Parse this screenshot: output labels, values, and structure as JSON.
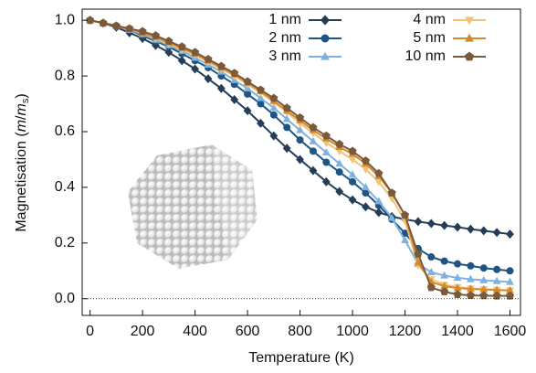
{
  "chart_data": {
    "type": "line",
    "x_label": "Temperature (K)",
    "y_label": [
      "Magnetisation (",
      "m",
      "/",
      "m",
      "s",
      ")"
    ],
    "x": [
      0,
      50,
      100,
      150,
      200,
      250,
      300,
      350,
      400,
      450,
      500,
      550,
      600,
      650,
      700,
      750,
      800,
      850,
      900,
      950,
      1000,
      1050,
      1100,
      1150,
      1200,
      1250,
      1300,
      1350,
      1400,
      1450,
      1500,
      1550,
      1600
    ],
    "series": [
      {
        "name": "1 nm",
        "color": "#253d56",
        "marker": "diamond",
        "values": [
          1.0,
          0.99,
          0.975,
          0.955,
          0.935,
          0.91,
          0.885,
          0.855,
          0.825,
          0.79,
          0.755,
          0.715,
          0.675,
          0.63,
          0.585,
          0.54,
          0.5,
          0.46,
          0.42,
          0.385,
          0.355,
          0.33,
          0.31,
          0.295,
          0.285,
          0.277,
          0.27,
          0.263,
          0.257,
          0.25,
          0.244,
          0.238,
          0.232
        ]
      },
      {
        "name": "2 nm",
        "color": "#1f5582",
        "marker": "circle",
        "values": [
          1.0,
          0.99,
          0.98,
          0.965,
          0.945,
          0.925,
          0.905,
          0.88,
          0.855,
          0.83,
          0.8,
          0.77,
          0.735,
          0.7,
          0.66,
          0.615,
          0.57,
          0.53,
          0.49,
          0.455,
          0.42,
          0.38,
          0.335,
          0.285,
          0.235,
          0.18,
          0.15,
          0.135,
          0.125,
          0.118,
          0.11,
          0.105,
          0.1
        ]
      },
      {
        "name": "3 nm",
        "color": "#7fb0de",
        "marker": "triangle-up",
        "values": [
          1.0,
          0.99,
          0.98,
          0.965,
          0.95,
          0.93,
          0.91,
          0.89,
          0.865,
          0.84,
          0.815,
          0.785,
          0.755,
          0.72,
          0.685,
          0.645,
          0.605,
          0.565,
          0.525,
          0.485,
          0.445,
          0.4,
          0.35,
          0.29,
          0.21,
          0.125,
          0.095,
          0.083,
          0.075,
          0.07,
          0.066,
          0.063,
          0.06
        ]
      },
      {
        "name": "4 nm",
        "color": "#f0c27a",
        "marker": "triangle-down",
        "values": [
          1.0,
          0.99,
          0.98,
          0.97,
          0.955,
          0.935,
          0.915,
          0.895,
          0.875,
          0.85,
          0.825,
          0.8,
          0.77,
          0.74,
          0.705,
          0.67,
          0.63,
          0.595,
          0.56,
          0.53,
          0.5,
          0.465,
          0.42,
          0.36,
          0.28,
          0.12,
          0.07,
          0.05,
          0.042,
          0.037,
          0.034,
          0.032,
          0.03
        ]
      },
      {
        "name": "5 nm",
        "color": "#d4892a",
        "marker": "triangle-up",
        "values": [
          1.0,
          0.99,
          0.98,
          0.97,
          0.955,
          0.94,
          0.92,
          0.9,
          0.88,
          0.855,
          0.83,
          0.805,
          0.775,
          0.745,
          0.71,
          0.675,
          0.64,
          0.605,
          0.575,
          0.545,
          0.52,
          0.485,
          0.44,
          0.38,
          0.3,
          0.13,
          0.06,
          0.045,
          0.038,
          0.035,
          0.033,
          0.031,
          0.03
        ]
      },
      {
        "name": "10 nm",
        "color": "#7a5a3a",
        "marker": "pentagon",
        "values": [
          1.0,
          0.99,
          0.98,
          0.97,
          0.96,
          0.945,
          0.925,
          0.905,
          0.885,
          0.86,
          0.835,
          0.81,
          0.78,
          0.75,
          0.72,
          0.685,
          0.65,
          0.615,
          0.585,
          0.555,
          0.53,
          0.495,
          0.45,
          0.38,
          0.3,
          0.16,
          0.04,
          0.025,
          0.015,
          0.012,
          0.011,
          0.01,
          0.01
        ]
      }
    ],
    "xlim": [
      -30,
      1640
    ],
    "ylim": [
      -0.06,
      1.04
    ],
    "xticks": [
      0,
      200,
      400,
      600,
      800,
      1000,
      1200,
      1400,
      1600
    ],
    "yticks": [
      {
        "value": 0,
        "label": "0.0"
      },
      {
        "value": 0.2,
        "label": "0.2"
      },
      {
        "value": 0.4,
        "label": "0.4"
      },
      {
        "value": 0.6,
        "label": "0.6"
      },
      {
        "value": 0.8,
        "label": "0.8"
      },
      {
        "value": 1,
        "label": "1.0"
      }
    ],
    "legend": "upper right",
    "grid": false
  }
}
